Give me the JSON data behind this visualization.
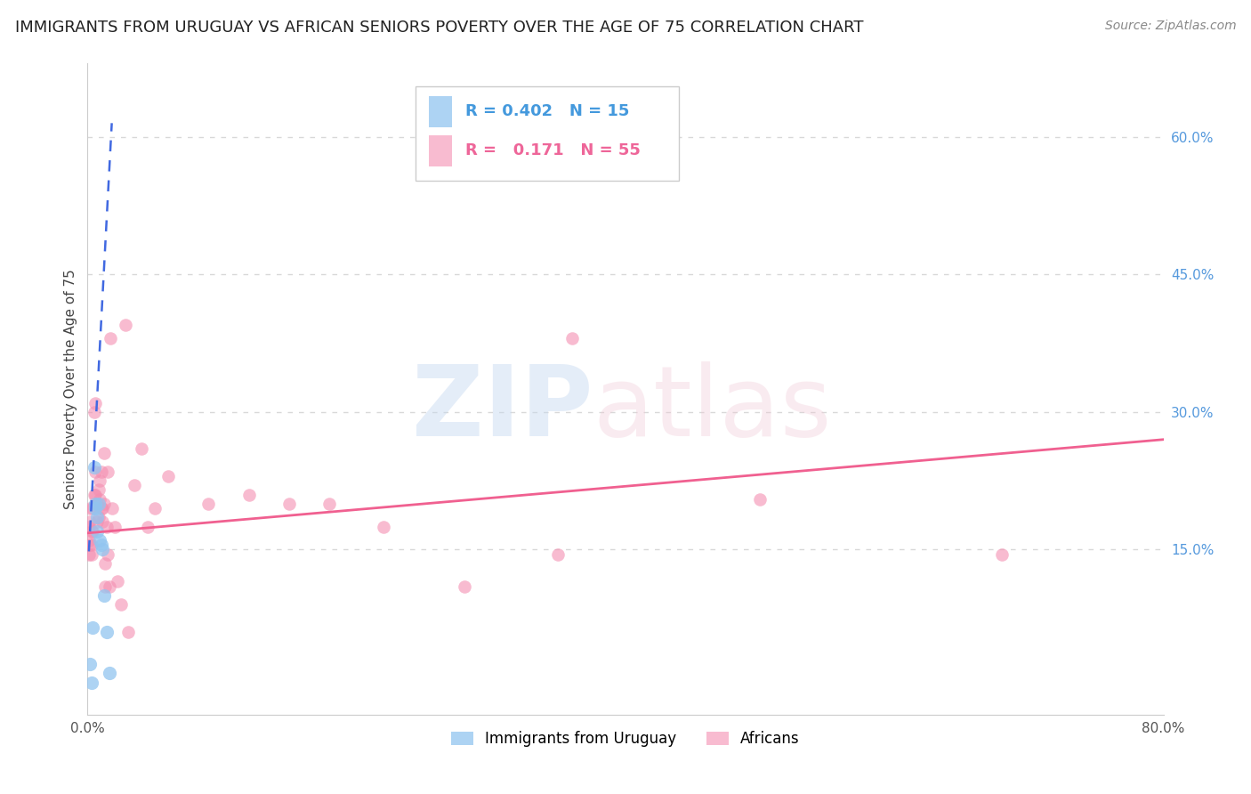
{
  "title": "IMMIGRANTS FROM URUGUAY VS AFRICAN SENIORS POVERTY OVER THE AGE OF 75 CORRELATION CHART",
  "source": "Source: ZipAtlas.com",
  "ylabel": "Seniors Poverty Over the Age of 75",
  "xlim": [
    0.0,
    0.8
  ],
  "ylim": [
    -0.03,
    0.68
  ],
  "r_uruguay": 0.402,
  "n_uruguay": 15,
  "r_african": 0.171,
  "n_african": 55,
  "legend_label_1": "Immigrants from Uruguay",
  "legend_label_2": "Africans",
  "color_uruguay": "#92C5F0",
  "color_african": "#F48FB1",
  "trendline_color_uruguay": "#4169E1",
  "trendline_color_african": "#F06090",
  "background_color": "#ffffff",
  "grid_color": "#d8d8d8",
  "uruguay_x": [
    0.002,
    0.003,
    0.004,
    0.005,
    0.006,
    0.006,
    0.007,
    0.007,
    0.008,
    0.009,
    0.01,
    0.011,
    0.012,
    0.014,
    0.016
  ],
  "uruguay_y": [
    0.025,
    0.005,
    0.065,
    0.24,
    0.195,
    0.2,
    0.185,
    0.17,
    0.2,
    0.16,
    0.155,
    0.15,
    0.1,
    0.06,
    0.015
  ],
  "african_x": [
    0.001,
    0.001,
    0.001,
    0.002,
    0.002,
    0.002,
    0.003,
    0.003,
    0.003,
    0.004,
    0.004,
    0.005,
    0.005,
    0.006,
    0.006,
    0.006,
    0.007,
    0.007,
    0.008,
    0.008,
    0.009,
    0.009,
    0.01,
    0.01,
    0.011,
    0.011,
    0.012,
    0.012,
    0.013,
    0.013,
    0.014,
    0.015,
    0.015,
    0.016,
    0.017,
    0.018,
    0.02,
    0.022,
    0.025,
    0.028,
    0.03,
    0.035,
    0.04,
    0.045,
    0.05,
    0.06,
    0.09,
    0.12,
    0.15,
    0.18,
    0.22,
    0.28,
    0.35,
    0.5,
    0.68
  ],
  "african_y": [
    0.175,
    0.16,
    0.145,
    0.195,
    0.18,
    0.155,
    0.17,
    0.155,
    0.145,
    0.195,
    0.17,
    0.3,
    0.21,
    0.31,
    0.235,
    0.21,
    0.2,
    0.18,
    0.215,
    0.185,
    0.225,
    0.205,
    0.235,
    0.195,
    0.195,
    0.18,
    0.255,
    0.2,
    0.135,
    0.11,
    0.175,
    0.235,
    0.145,
    0.11,
    0.38,
    0.195,
    0.175,
    0.115,
    0.09,
    0.395,
    0.06,
    0.22,
    0.26,
    0.175,
    0.195,
    0.23,
    0.2,
    0.21,
    0.2,
    0.2,
    0.175,
    0.11,
    0.145,
    0.205,
    0.145
  ],
  "african_high_x": [
    0.27
  ],
  "african_high_y": [
    0.62
  ],
  "african_mid_x": [
    0.36
  ],
  "african_mid_y": [
    0.38
  ],
  "title_fontsize": 13,
  "axis_label_fontsize": 11,
  "tick_fontsize": 11,
  "source_fontsize": 10
}
